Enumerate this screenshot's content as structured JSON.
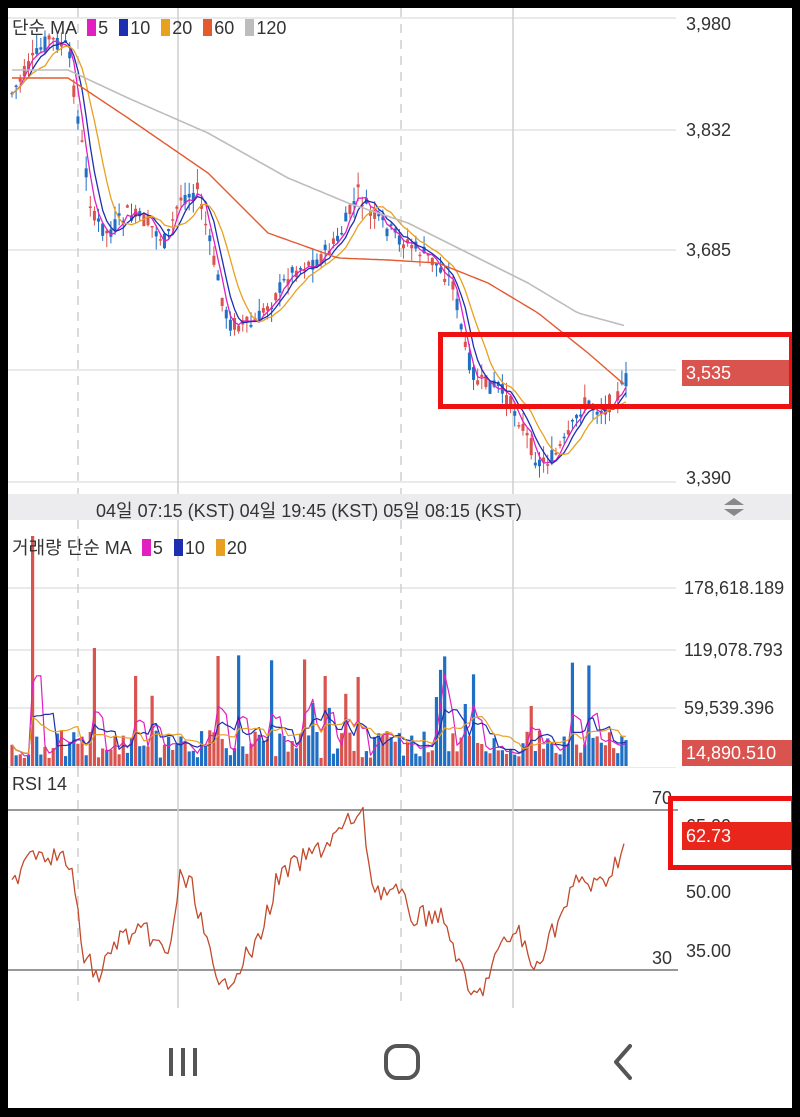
{
  "price_panel": {
    "legend_label": "단순 MA",
    "ma_items": [
      {
        "label": "5",
        "color": "#e020c0"
      },
      {
        "label": "10",
        "color": "#1c2fb0"
      },
      {
        "label": "20",
        "color": "#e8a020"
      },
      {
        "label": "60",
        "color": "#e45a30"
      },
      {
        "label": "120",
        "color": "#bdbdbd"
      }
    ],
    "y_labels": [
      "3,980",
      "3,832",
      "3,685",
      "3,390"
    ],
    "current_price": "3,535",
    "price_range": [
      3390,
      3980
    ]
  },
  "time_axis": {
    "label": "04일 07:15 (KST) 04일 19:45 (KST) 05일 08:15 (KST)"
  },
  "volume_panel": {
    "legend_label": "거래량 단순 MA",
    "ma_items": [
      {
        "label": "5",
        "color": "#e020c0"
      },
      {
        "label": "10",
        "color": "#1c2fb0"
      },
      {
        "label": "20",
        "color": "#e8a020"
      }
    ],
    "y_labels": [
      "178,618.189",
      "119,078.793",
      "59,539.396"
    ],
    "current_volume": "14,890.510"
  },
  "rsi_panel": {
    "legend_label": "RSI 14",
    "level_high": "70",
    "level_low": "30",
    "y_labels": [
      "65.00",
      "50.00",
      "35.00"
    ],
    "current_value": "62.73"
  },
  "colors": {
    "up": "#d9534f",
    "down": "#1f6fc5",
    "rsi_line": "#c24a2c",
    "highlight": "#ee1111"
  },
  "nav": {
    "recent_apps_icon": "recent-apps-icon",
    "home_icon": "home-icon",
    "back_icon": "back-icon"
  }
}
